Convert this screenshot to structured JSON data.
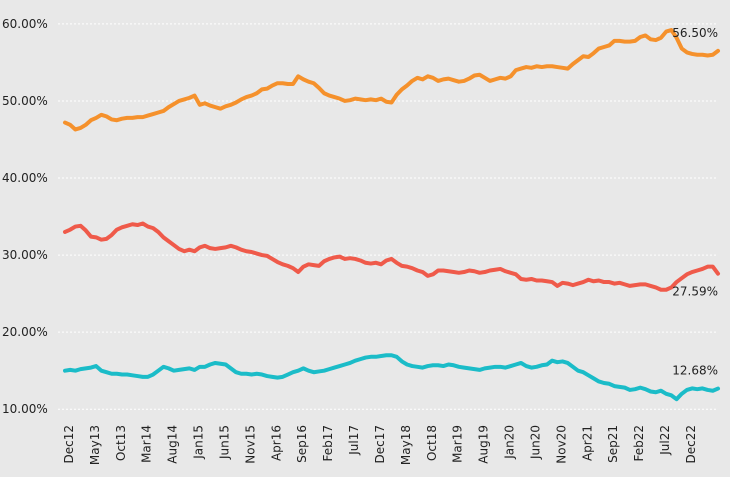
{
  "chart_data": {
    "type": "line",
    "categories": [
      "Dec12",
      null,
      null,
      null,
      null,
      "May13",
      null,
      null,
      null,
      null,
      "Oct13",
      null,
      null,
      null,
      null,
      "Mar14",
      null,
      null,
      null,
      null,
      "Aug14",
      null,
      null,
      null,
      null,
      "Jan15",
      null,
      null,
      null,
      null,
      "Jun15",
      null,
      null,
      null,
      null,
      "Nov15",
      null,
      null,
      null,
      null,
      "Apr16",
      null,
      null,
      null,
      null,
      "Sep16",
      null,
      null,
      null,
      null,
      "Feb17",
      null,
      null,
      null,
      null,
      "Jul17",
      null,
      null,
      null,
      null,
      "Dec17",
      null,
      null,
      null,
      null,
      "May18",
      null,
      null,
      null,
      null,
      "Oct18",
      null,
      null,
      null,
      null,
      "Mar19",
      null,
      null,
      null,
      null,
      "Aug19",
      null,
      null,
      null,
      null,
      "Jan20",
      null,
      null,
      null,
      null,
      "Jun20",
      null,
      null,
      null,
      null,
      "Nov20",
      null,
      null,
      null,
      null,
      "Apr21",
      null,
      null,
      null,
      null,
      "Sep21",
      null,
      null,
      null,
      null,
      "Feb22",
      null,
      null,
      null,
      null,
      "Jul22",
      null,
      null,
      null,
      null,
      "Dec22",
      null,
      null,
      null,
      null,
      null,
      null
    ],
    "series": [
      {
        "color": "#f5912c",
        "values": [
          47.2,
          46.9,
          46.3,
          46.5,
          46.9,
          47.5,
          47.8,
          48.2,
          48.0,
          47.6,
          47.5,
          47.7,
          47.8,
          47.8,
          47.9,
          47.9,
          48.1,
          48.3,
          48.5,
          48.7,
          49.2,
          49.6,
          50.0,
          50.2,
          50.4,
          50.7,
          49.5,
          49.7,
          49.4,
          49.2,
          49.0,
          49.3,
          49.5,
          49.8,
          50.2,
          50.5,
          50.7,
          51.0,
          51.5,
          51.6,
          52.0,
          52.3,
          52.3,
          52.2,
          52.2,
          53.2,
          52.8,
          52.5,
          52.3,
          51.7,
          51.0,
          50.7,
          50.5,
          50.3,
          50.0,
          50.1,
          50.3,
          50.2,
          50.1,
          50.2,
          50.1,
          50.3,
          49.9,
          49.8,
          50.8,
          51.5,
          52.0,
          52.6,
          53.0,
          52.8,
          53.2,
          53.0,
          52.6,
          52.8,
          52.9,
          52.7,
          52.5,
          52.6,
          52.9,
          53.3,
          53.4,
          53.0,
          52.6,
          52.8,
          53.0,
          52.9,
          53.2,
          54.0,
          54.2,
          54.4,
          54.3,
          54.5,
          54.4,
          54.5,
          54.5,
          54.4,
          54.3,
          54.2,
          54.8,
          55.3,
          55.8,
          55.7,
          56.2,
          56.8,
          57.0,
          57.2,
          57.8,
          57.8,
          57.7,
          57.7,
          57.8,
          58.3,
          58.5,
          58.0,
          57.9,
          58.2,
          59.0,
          59.2,
          58.2,
          56.8,
          56.3,
          56.1,
          56.0,
          56.0,
          55.9,
          56.0,
          56.5
        ],
        "value_labels": [
          null,
          null,
          null,
          null,
          null,
          null,
          null,
          null,
          null,
          null,
          null,
          null,
          null,
          null,
          null,
          null,
          null,
          null,
          null,
          null,
          null,
          null,
          null,
          null,
          null,
          null,
          null,
          null,
          null,
          null,
          null,
          null,
          null,
          null,
          null,
          null,
          null,
          null,
          null,
          null,
          null,
          null,
          null,
          null,
          null,
          null,
          null,
          null,
          null,
          null,
          null,
          null,
          null,
          null,
          null,
          null,
          null,
          null,
          null,
          null,
          null,
          null,
          null,
          null,
          null,
          null,
          null,
          null,
          null,
          null,
          null,
          null,
          null,
          null,
          null,
          null,
          null,
          null,
          null,
          null,
          null,
          null,
          null,
          null,
          null,
          null,
          null,
          null,
          null,
          null,
          null,
          null,
          null,
          null,
          null,
          null,
          null,
          null,
          null,
          null,
          null,
          null,
          null,
          null,
          null,
          null,
          null,
          null,
          null,
          null,
          null,
          null,
          null,
          null,
          null,
          null,
          null,
          null,
          null,
          null,
          null,
          null,
          null,
          null,
          null,
          null,
          "56.50%"
        ]
      },
      {
        "color": "#ef5a4a",
        "values": [
          33.0,
          33.3,
          33.7,
          33.8,
          33.2,
          32.4,
          32.3,
          32.0,
          32.1,
          32.6,
          33.3,
          33.6,
          33.8,
          34.0,
          33.9,
          34.1,
          33.7,
          33.5,
          33.0,
          32.3,
          31.8,
          31.3,
          30.8,
          30.5,
          30.7,
          30.5,
          31.0,
          31.2,
          30.9,
          30.8,
          30.9,
          31.0,
          31.2,
          31.0,
          30.7,
          30.5,
          30.4,
          30.2,
          30.0,
          29.9,
          29.5,
          29.1,
          28.8,
          28.6,
          28.3,
          27.8,
          28.5,
          28.8,
          28.7,
          28.6,
          29.2,
          29.5,
          29.7,
          29.8,
          29.5,
          29.6,
          29.5,
          29.3,
          29.0,
          28.9,
          29.0,
          28.8,
          29.3,
          29.5,
          29.0,
          28.6,
          28.5,
          28.3,
          28.0,
          27.8,
          27.3,
          27.5,
          28.0,
          28.0,
          27.9,
          27.8,
          27.7,
          27.8,
          28.0,
          27.9,
          27.7,
          27.8,
          28.0,
          28.1,
          28.2,
          27.9,
          27.7,
          27.5,
          26.9,
          26.8,
          26.9,
          26.7,
          26.7,
          26.6,
          26.5,
          26.0,
          26.4,
          26.3,
          26.1,
          26.3,
          26.5,
          26.8,
          26.6,
          26.7,
          26.5,
          26.5,
          26.3,
          26.4,
          26.2,
          26.0,
          26.1,
          26.2,
          26.2,
          26.0,
          25.8,
          25.5,
          25.5,
          25.8,
          26.5,
          27.0,
          27.5,
          27.8,
          28.0,
          28.2,
          28.5,
          28.5,
          27.59
        ],
        "value_labels": [
          null,
          null,
          null,
          null,
          null,
          null,
          null,
          null,
          null,
          null,
          null,
          null,
          null,
          null,
          null,
          null,
          null,
          null,
          null,
          null,
          null,
          null,
          null,
          null,
          null,
          null,
          null,
          null,
          null,
          null,
          null,
          null,
          null,
          null,
          null,
          null,
          null,
          null,
          null,
          null,
          null,
          null,
          null,
          null,
          null,
          null,
          null,
          null,
          null,
          null,
          null,
          null,
          null,
          null,
          null,
          null,
          null,
          null,
          null,
          null,
          null,
          null,
          null,
          null,
          null,
          null,
          null,
          null,
          null,
          null,
          null,
          null,
          null,
          null,
          null,
          null,
          null,
          null,
          null,
          null,
          null,
          null,
          null,
          null,
          null,
          null,
          null,
          null,
          null,
          null,
          null,
          null,
          null,
          null,
          null,
          null,
          null,
          null,
          null,
          null,
          null,
          null,
          null,
          null,
          null,
          null,
          null,
          null,
          null,
          null,
          null,
          null,
          null,
          null,
          null,
          null,
          null,
          null,
          null,
          null,
          null,
          null,
          null,
          null,
          null,
          null,
          "27.59%"
        ]
      },
      {
        "color": "#1bbcc8",
        "values": [
          15.0,
          15.1,
          15.0,
          15.2,
          15.3,
          15.4,
          15.6,
          15.0,
          14.8,
          14.6,
          14.6,
          14.5,
          14.5,
          14.4,
          14.3,
          14.2,
          14.2,
          14.5,
          15.0,
          15.5,
          15.3,
          15.0,
          15.1,
          15.2,
          15.3,
          15.1,
          15.5,
          15.5,
          15.8,
          16.0,
          15.9,
          15.8,
          15.3,
          14.8,
          14.6,
          14.6,
          14.5,
          14.6,
          14.5,
          14.3,
          14.2,
          14.1,
          14.2,
          14.5,
          14.8,
          15.0,
          15.3,
          15.0,
          14.8,
          14.9,
          15.0,
          15.2,
          15.4,
          15.6,
          15.8,
          16.0,
          16.3,
          16.5,
          16.7,
          16.8,
          16.8,
          16.9,
          17.0,
          17.0,
          16.8,
          16.2,
          15.8,
          15.6,
          15.5,
          15.4,
          15.6,
          15.7,
          15.7,
          15.6,
          15.8,
          15.7,
          15.5,
          15.4,
          15.3,
          15.2,
          15.1,
          15.3,
          15.4,
          15.5,
          15.5,
          15.4,
          15.6,
          15.8,
          16.0,
          15.6,
          15.4,
          15.5,
          15.7,
          15.8,
          16.3,
          16.1,
          16.2,
          16.0,
          15.5,
          15.0,
          14.8,
          14.4,
          14.0,
          13.6,
          13.4,
          13.3,
          13.0,
          12.9,
          12.8,
          12.5,
          12.6,
          12.8,
          12.6,
          12.3,
          12.2,
          12.4,
          12.0,
          11.8,
          11.3,
          12.0,
          12.5,
          12.7,
          12.6,
          12.7,
          12.5,
          12.4,
          12.68
        ],
        "value_labels": [
          null,
          null,
          null,
          null,
          null,
          null,
          null,
          null,
          null,
          null,
          null,
          null,
          null,
          null,
          null,
          null,
          null,
          null,
          null,
          null,
          null,
          null,
          null,
          null,
          null,
          null,
          null,
          null,
          null,
          null,
          null,
          null,
          null,
          null,
          null,
          null,
          null,
          null,
          null,
          null,
          null,
          null,
          null,
          null,
          null,
          null,
          null,
          null,
          null,
          null,
          null,
          null,
          null,
          null,
          null,
          null,
          null,
          null,
          null,
          null,
          null,
          null,
          null,
          null,
          null,
          null,
          null,
          null,
          null,
          null,
          null,
          null,
          null,
          null,
          null,
          null,
          null,
          null,
          null,
          null,
          null,
          null,
          null,
          null,
          null,
          null,
          null,
          null,
          null,
          null,
          null,
          null,
          null,
          null,
          null,
          null,
          null,
          null,
          null,
          null,
          null,
          null,
          null,
          null,
          null,
          null,
          null,
          null,
          null,
          null,
          null,
          null,
          null,
          null,
          null,
          null,
          null,
          null,
          null,
          null,
          null,
          null,
          null,
          null,
          null,
          null,
          "12.68%"
        ]
      }
    ],
    "ylim": [
      8.6,
      63.1
    ],
    "yticks": [
      {
        "value": 10,
        "label": "10.00%"
      },
      {
        "value": 20,
        "label": "20.00%"
      },
      {
        "value": 30,
        "label": "30.00%"
      },
      {
        "value": 40,
        "label": "40.00%"
      },
      {
        "value": 50,
        "label": "50.00%"
      },
      {
        "value": 60,
        "label": "60.00%"
      }
    ],
    "grid": true
  }
}
